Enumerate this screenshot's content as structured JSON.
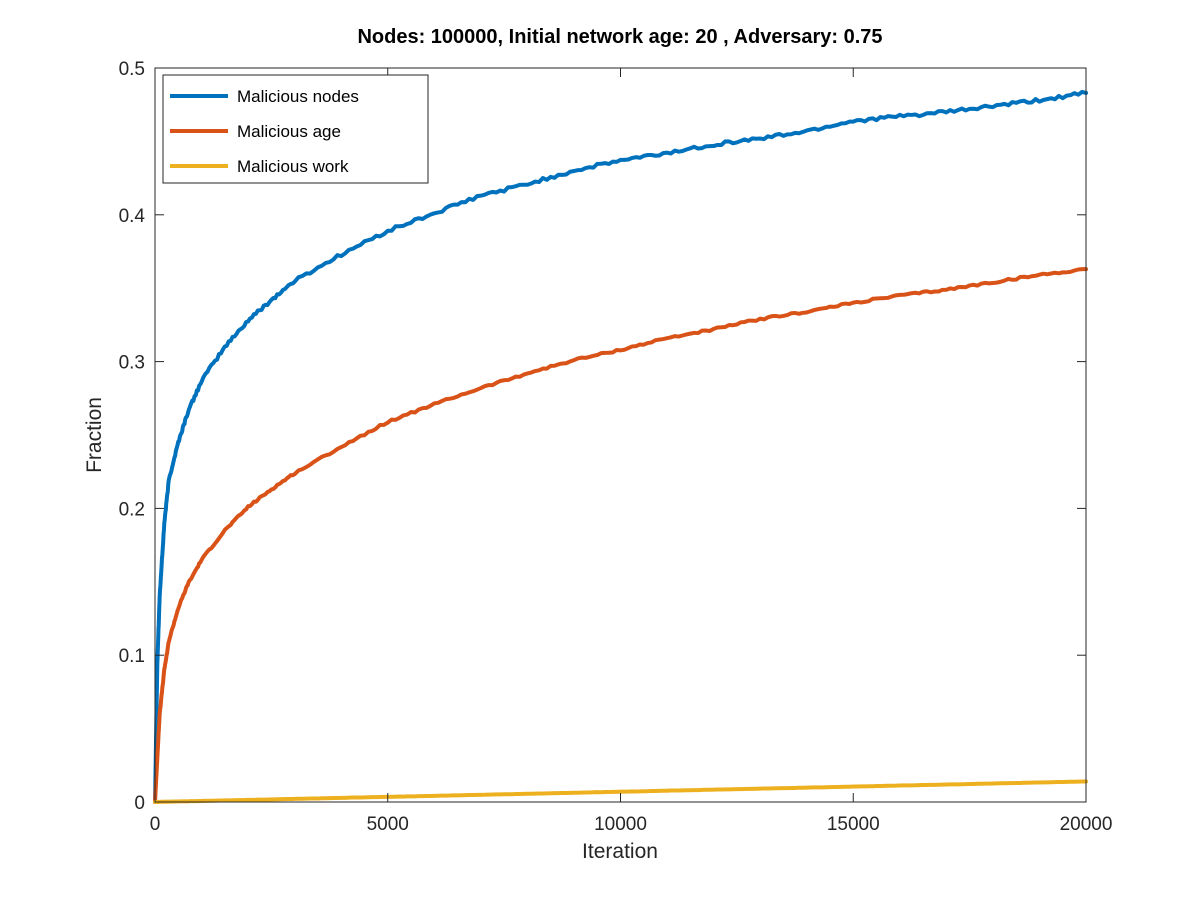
{
  "chart_data": {
    "type": "line",
    "title": "Nodes: 100000, Initial network age: 20 , Adversary: 0.75",
    "xlabel": "Iteration",
    "ylabel": "Fraction",
    "xlim": [
      0,
      20000
    ],
    "ylim": [
      0,
      0.5
    ],
    "xticks": [
      0,
      5000,
      10000,
      15000,
      20000
    ],
    "yticks": [
      0,
      0.1,
      0.2,
      0.3,
      0.4,
      0.5
    ],
    "xtick_labels": [
      "0",
      "5000",
      "10000",
      "15000",
      "20000"
    ],
    "ytick_labels": [
      "0",
      "0.1",
      "0.2",
      "0.3",
      "0.4",
      "0.5"
    ],
    "grid": false,
    "legend_position": "top-left",
    "x": [
      0,
      50,
      100,
      200,
      300,
      500,
      700,
      1000,
      1500,
      2000,
      2500,
      3000,
      4000,
      5000,
      6000,
      7000,
      8000,
      9000,
      10000,
      11000,
      12000,
      13000,
      14000,
      15000,
      16000,
      17000,
      18000,
      19000,
      20000
    ],
    "series": [
      {
        "name": "Malicious nodes",
        "color": "#0072BD",
        "values": [
          0,
          0.095,
          0.14,
          0.19,
          0.22,
          0.245,
          0.265,
          0.287,
          0.31,
          0.328,
          0.342,
          0.355,
          0.373,
          0.389,
          0.401,
          0.413,
          0.421,
          0.43,
          0.437,
          0.442,
          0.448,
          0.452,
          0.457,
          0.464,
          0.467,
          0.47,
          0.474,
          0.478,
          0.483
        ]
      },
      {
        "name": "Malicious age",
        "color": "#D95319",
        "values": [
          0,
          0.03,
          0.06,
          0.09,
          0.11,
          0.132,
          0.148,
          0.165,
          0.185,
          0.201,
          0.213,
          0.224,
          0.242,
          0.259,
          0.271,
          0.282,
          0.292,
          0.301,
          0.308,
          0.316,
          0.322,
          0.329,
          0.334,
          0.34,
          0.345,
          0.349,
          0.354,
          0.359,
          0.363
        ]
      },
      {
        "name": "Malicious work",
        "color": "#EDB120",
        "values": [
          0,
          0,
          0.0001,
          0.0002,
          0.0002,
          0.0004,
          0.0005,
          0.0007,
          0.0011,
          0.0014,
          0.0018,
          0.0021,
          0.0028,
          0.0035,
          0.0042,
          0.0049,
          0.0056,
          0.0063,
          0.007,
          0.0077,
          0.0084,
          0.0091,
          0.0098,
          0.0105,
          0.0112,
          0.0119,
          0.0126,
          0.0133,
          0.014
        ]
      }
    ]
  }
}
